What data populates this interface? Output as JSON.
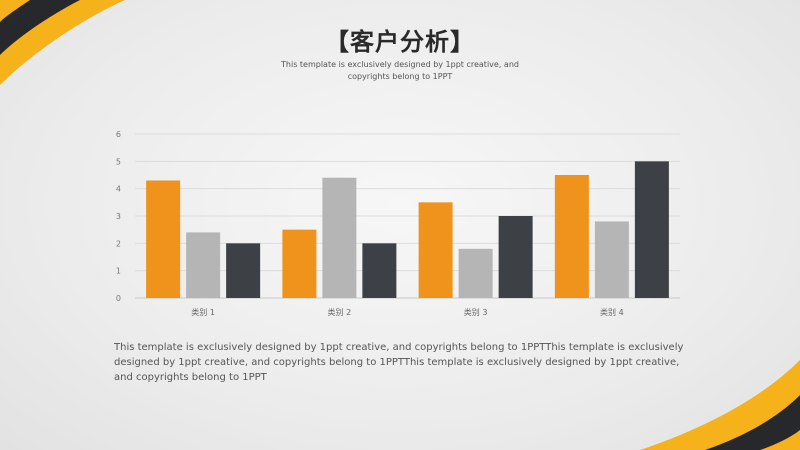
{
  "title": "【客户分析】",
  "subtitle": "This template is exclusively designed by 1ppt creative, and copyrights belong to 1PPT",
  "body_text": "This template is exclusively designed by 1ppt creative, and copyrights belong to 1PPTThis template is exclusively designed by 1ppt creative, and copyrights belong to 1PPTThis template is exclusively designed by 1ppt creative, and copyrights belong to 1PPT",
  "colors": {
    "accent_orange": "#f0931c",
    "accent_gray": "#b5b5b5",
    "accent_dark": "#3d4045",
    "deco_yellow": "#f6b21a",
    "deco_dark": "#26282b"
  },
  "chart_data": {
    "type": "bar",
    "categories": [
      "类别 1",
      "类别 2",
      "类别 3",
      "类别 4"
    ],
    "series": [
      {
        "values": [
          4.3,
          2.5,
          3.5,
          4.5
        ],
        "color": "#f0931c"
      },
      {
        "values": [
          2.4,
          4.4,
          1.8,
          2.8
        ],
        "color": "#b5b5b5"
      },
      {
        "values": [
          2.0,
          2.0,
          3.0,
          5.0
        ],
        "color": "#3d4045"
      }
    ],
    "ylim": [
      0,
      6
    ],
    "yticks": [
      0,
      1,
      2,
      3,
      4,
      5,
      6
    ],
    "grid": true,
    "legend": "none"
  }
}
